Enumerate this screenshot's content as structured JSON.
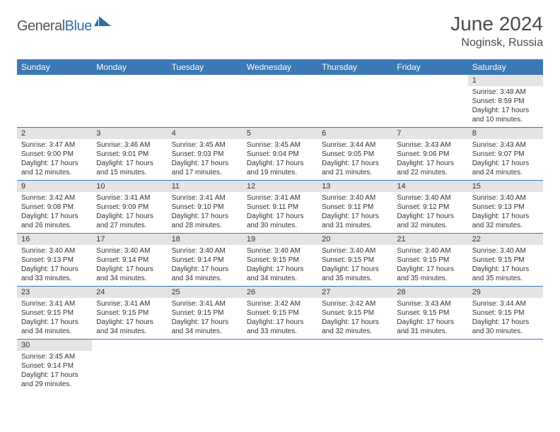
{
  "logo": {
    "part1": "General",
    "part2": "Blue"
  },
  "title": "June 2024",
  "location": "Noginsk, Russia",
  "colors": {
    "header_bg": "#3b78b5",
    "header_text": "#ffffff",
    "daynum_bg": "#e4e4e4",
    "cell_border": "#3b78b5",
    "body_text": "#333333",
    "logo_gray": "#555555",
    "logo_blue": "#2f6fa7"
  },
  "day_headers": [
    "Sunday",
    "Monday",
    "Tuesday",
    "Wednesday",
    "Thursday",
    "Friday",
    "Saturday"
  ],
  "weeks": [
    [
      null,
      null,
      null,
      null,
      null,
      null,
      {
        "n": "1",
        "sr": "3:48 AM",
        "ss": "8:59 PM",
        "dl": "17 hours and 10 minutes."
      }
    ],
    [
      {
        "n": "2",
        "sr": "3:47 AM",
        "ss": "9:00 PM",
        "dl": "17 hours and 12 minutes."
      },
      {
        "n": "3",
        "sr": "3:46 AM",
        "ss": "9:01 PM",
        "dl": "17 hours and 15 minutes."
      },
      {
        "n": "4",
        "sr": "3:45 AM",
        "ss": "9:03 PM",
        "dl": "17 hours and 17 minutes."
      },
      {
        "n": "5",
        "sr": "3:45 AM",
        "ss": "9:04 PM",
        "dl": "17 hours and 19 minutes."
      },
      {
        "n": "6",
        "sr": "3:44 AM",
        "ss": "9:05 PM",
        "dl": "17 hours and 21 minutes."
      },
      {
        "n": "7",
        "sr": "3:43 AM",
        "ss": "9:06 PM",
        "dl": "17 hours and 22 minutes."
      },
      {
        "n": "8",
        "sr": "3:43 AM",
        "ss": "9:07 PM",
        "dl": "17 hours and 24 minutes."
      }
    ],
    [
      {
        "n": "9",
        "sr": "3:42 AM",
        "ss": "9:08 PM",
        "dl": "17 hours and 26 minutes."
      },
      {
        "n": "10",
        "sr": "3:41 AM",
        "ss": "9:09 PM",
        "dl": "17 hours and 27 minutes."
      },
      {
        "n": "11",
        "sr": "3:41 AM",
        "ss": "9:10 PM",
        "dl": "17 hours and 28 minutes."
      },
      {
        "n": "12",
        "sr": "3:41 AM",
        "ss": "9:11 PM",
        "dl": "17 hours and 30 minutes."
      },
      {
        "n": "13",
        "sr": "3:40 AM",
        "ss": "9:11 PM",
        "dl": "17 hours and 31 minutes."
      },
      {
        "n": "14",
        "sr": "3:40 AM",
        "ss": "9:12 PM",
        "dl": "17 hours and 32 minutes."
      },
      {
        "n": "15",
        "sr": "3:40 AM",
        "ss": "9:13 PM",
        "dl": "17 hours and 32 minutes."
      }
    ],
    [
      {
        "n": "16",
        "sr": "3:40 AM",
        "ss": "9:13 PM",
        "dl": "17 hours and 33 minutes."
      },
      {
        "n": "17",
        "sr": "3:40 AM",
        "ss": "9:14 PM",
        "dl": "17 hours and 34 minutes."
      },
      {
        "n": "18",
        "sr": "3:40 AM",
        "ss": "9:14 PM",
        "dl": "17 hours and 34 minutes."
      },
      {
        "n": "19",
        "sr": "3:40 AM",
        "ss": "9:15 PM",
        "dl": "17 hours and 34 minutes."
      },
      {
        "n": "20",
        "sr": "3:40 AM",
        "ss": "9:15 PM",
        "dl": "17 hours and 35 minutes."
      },
      {
        "n": "21",
        "sr": "3:40 AM",
        "ss": "9:15 PM",
        "dl": "17 hours and 35 minutes."
      },
      {
        "n": "22",
        "sr": "3:40 AM",
        "ss": "9:15 PM",
        "dl": "17 hours and 35 minutes."
      }
    ],
    [
      {
        "n": "23",
        "sr": "3:41 AM",
        "ss": "9:15 PM",
        "dl": "17 hours and 34 minutes."
      },
      {
        "n": "24",
        "sr": "3:41 AM",
        "ss": "9:15 PM",
        "dl": "17 hours and 34 minutes."
      },
      {
        "n": "25",
        "sr": "3:41 AM",
        "ss": "9:15 PM",
        "dl": "17 hours and 34 minutes."
      },
      {
        "n": "26",
        "sr": "3:42 AM",
        "ss": "9:15 PM",
        "dl": "17 hours and 33 minutes."
      },
      {
        "n": "27",
        "sr": "3:42 AM",
        "ss": "9:15 PM",
        "dl": "17 hours and 32 minutes."
      },
      {
        "n": "28",
        "sr": "3:43 AM",
        "ss": "9:15 PM",
        "dl": "17 hours and 31 minutes."
      },
      {
        "n": "29",
        "sr": "3:44 AM",
        "ss": "9:15 PM",
        "dl": "17 hours and 30 minutes."
      }
    ],
    [
      {
        "n": "30",
        "sr": "3:45 AM",
        "ss": "9:14 PM",
        "dl": "17 hours and 29 minutes."
      },
      null,
      null,
      null,
      null,
      null,
      null
    ]
  ],
  "labels": {
    "sunrise": "Sunrise:",
    "sunset": "Sunset:",
    "daylight": "Daylight:"
  }
}
